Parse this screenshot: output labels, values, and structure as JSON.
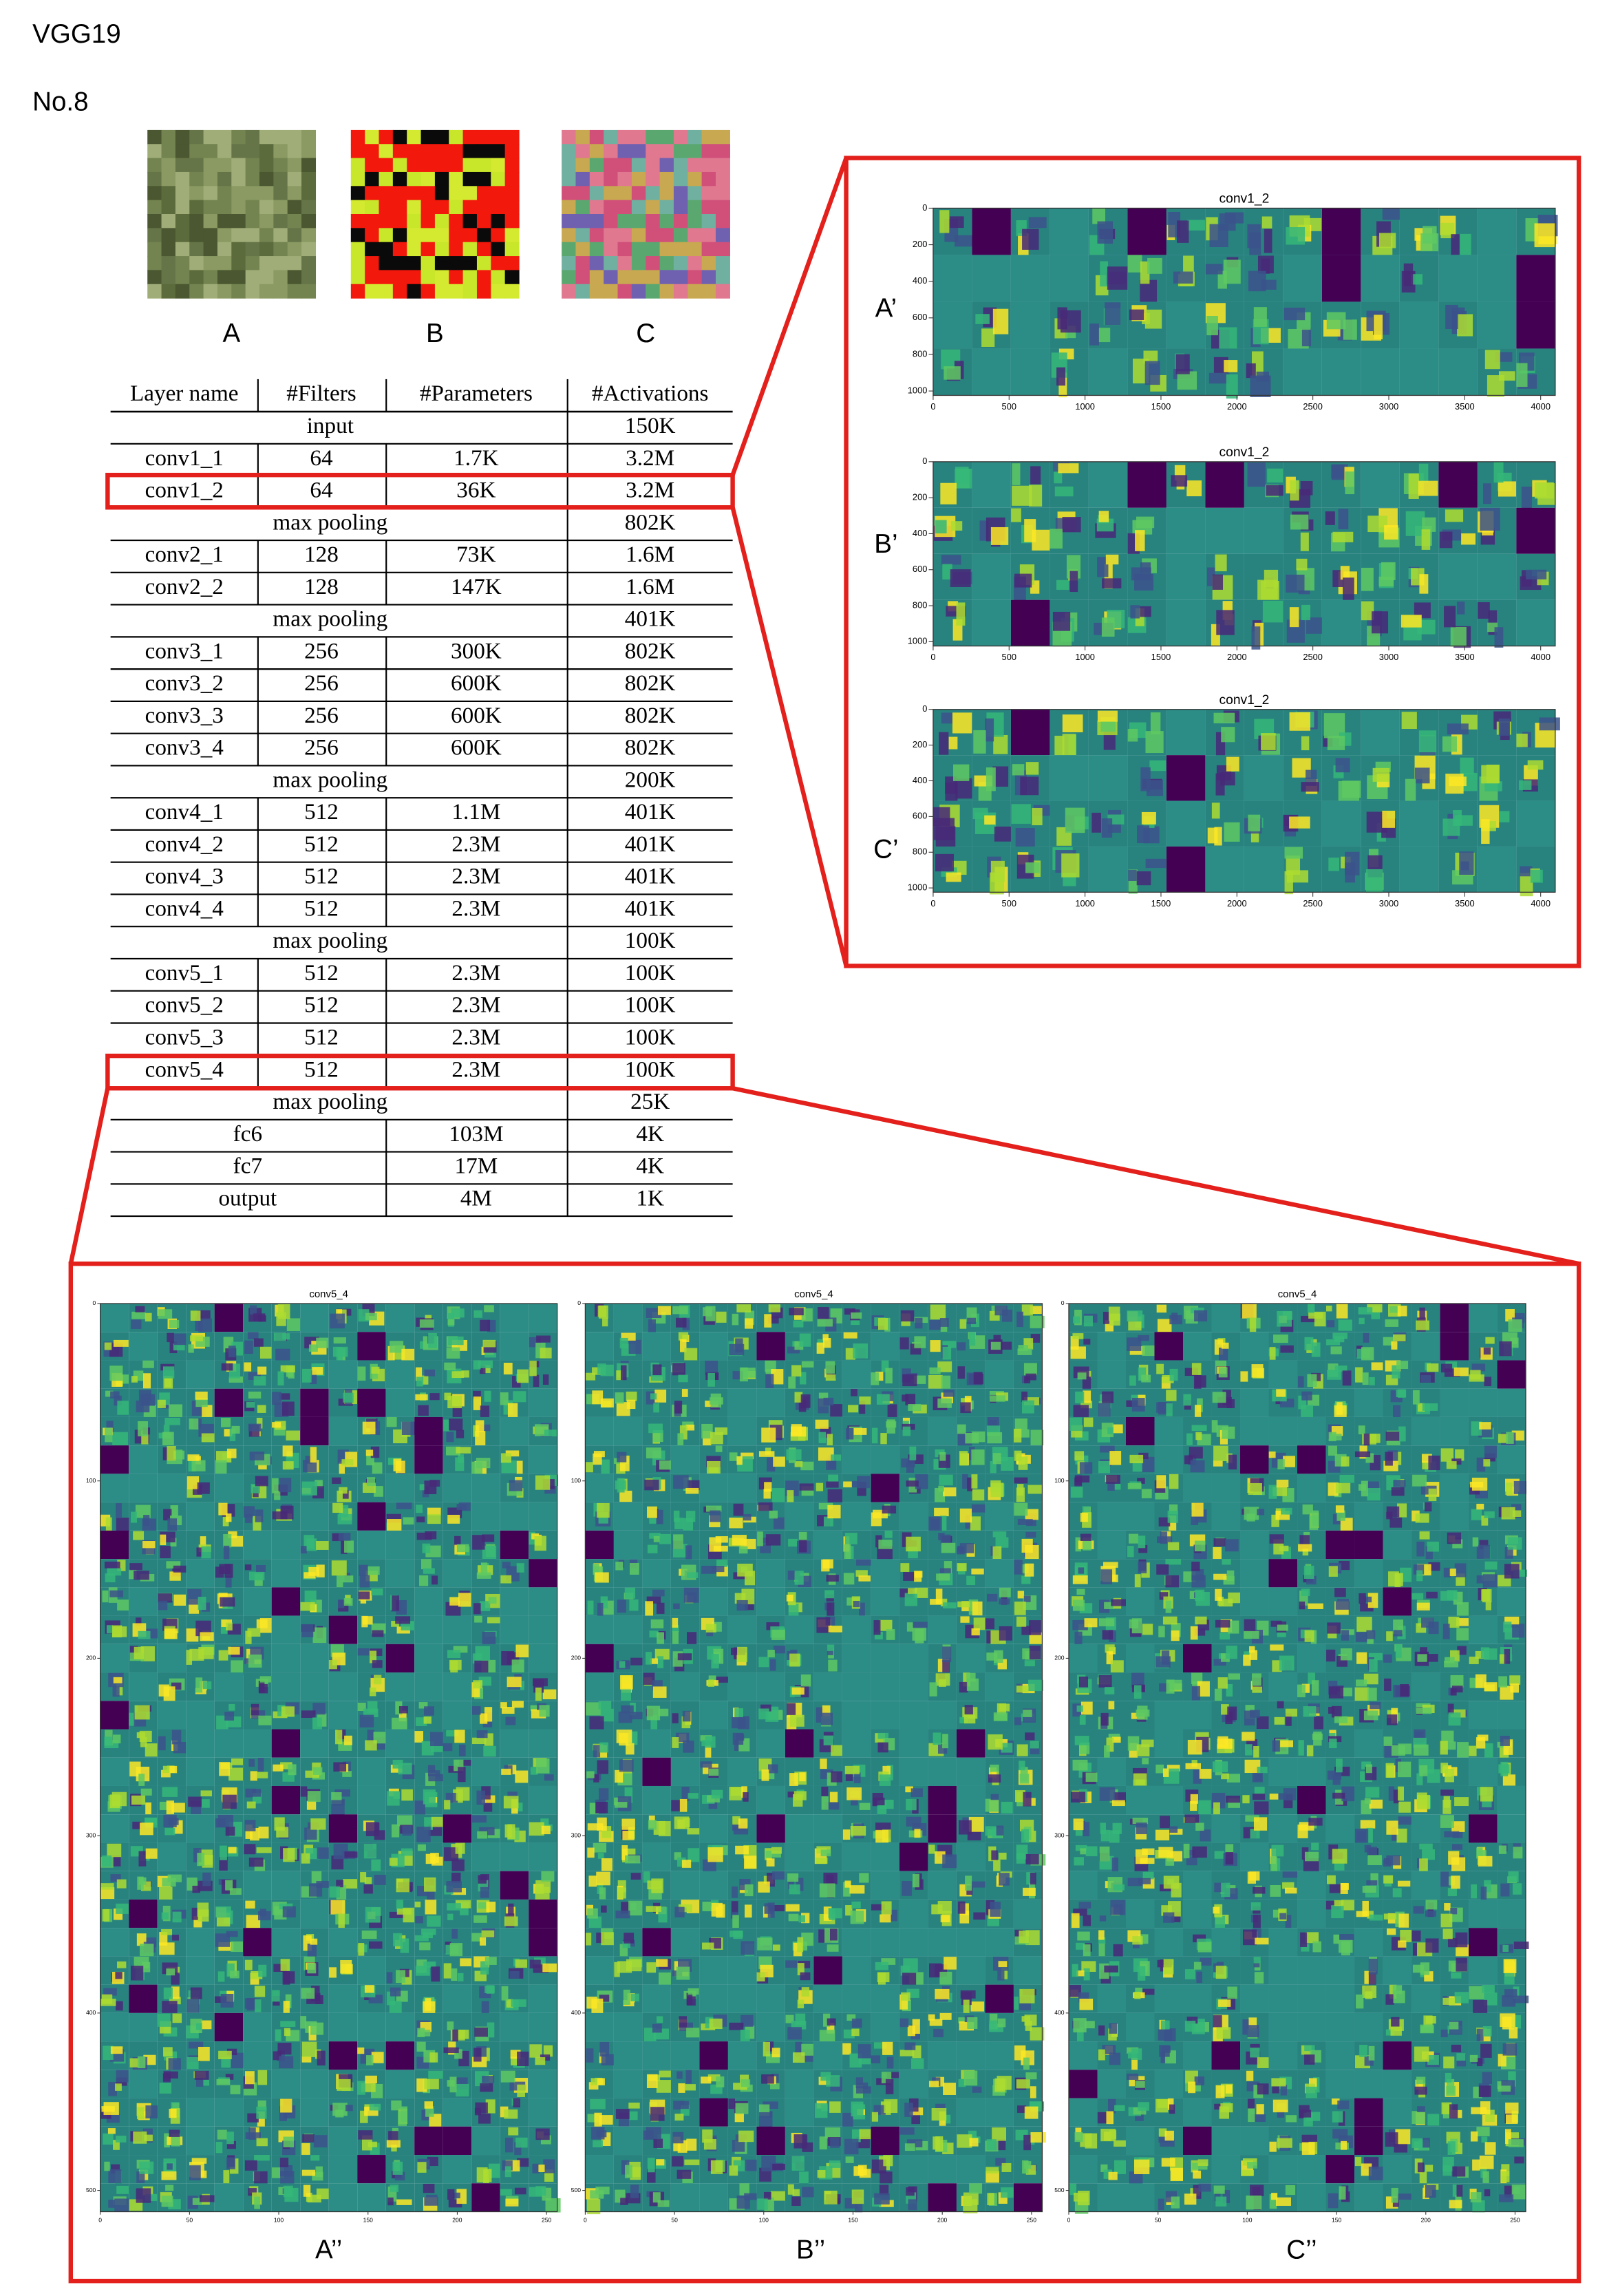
{
  "header": {
    "title": "VGG19",
    "subtitle": "No.8"
  },
  "images": [
    "A",
    "B",
    "C"
  ],
  "table": {
    "columns": [
      "Layer name",
      "#Filters",
      "#Parameters",
      "#Activations"
    ],
    "rows": [
      [
        "input",
        "150K"
      ],
      [
        "conv1_1",
        "64",
        "1.7K",
        "3.2M"
      ],
      [
        "conv1_2",
        "64",
        "36K",
        "3.2M"
      ],
      [
        "max pooling",
        "802K"
      ],
      [
        "conv2_1",
        "128",
        "73K",
        "1.6M"
      ],
      [
        "conv2_2",
        "128",
        "147K",
        "1.6M"
      ],
      [
        "max pooling",
        "401K"
      ],
      [
        "conv3_1",
        "256",
        "300K",
        "802K"
      ],
      [
        "conv3_2",
        "256",
        "600K",
        "802K"
      ],
      [
        "conv3_3",
        "256",
        "600K",
        "802K"
      ],
      [
        "conv3_4",
        "256",
        "600K",
        "802K"
      ],
      [
        "max pooling",
        "200K"
      ],
      [
        "conv4_1",
        "512",
        "1.1M",
        "401K"
      ],
      [
        "conv4_2",
        "512",
        "2.3M",
        "401K"
      ],
      [
        "conv4_3",
        "512",
        "2.3M",
        "401K"
      ],
      [
        "conv4_4",
        "512",
        "2.3M",
        "401K"
      ],
      [
        "max pooling",
        "100K"
      ],
      [
        "conv5_1",
        "512",
        "2.3M",
        "100K"
      ],
      [
        "conv5_2",
        "512",
        "2.3M",
        "100K"
      ],
      [
        "conv5_3",
        "512",
        "2.3M",
        "100K"
      ],
      [
        "conv5_4",
        "512",
        "2.3M",
        "100K"
      ],
      [
        "max pooling",
        "25K"
      ],
      [
        "fc6",
        "103M",
        "4K"
      ],
      [
        "fc7",
        "17M",
        "4K"
      ],
      [
        "output",
        "4M",
        "1K"
      ]
    ]
  },
  "top_panels": {
    "labels": [
      "A’",
      "B’",
      "C’"
    ],
    "titles": [
      "conv1_2",
      "conv1_2",
      "conv1_2"
    ],
    "xticks": [
      0,
      500,
      1000,
      1500,
      2000,
      2500,
      3000,
      3500,
      4000
    ],
    "yticks": [
      0,
      200,
      400,
      600,
      800,
      1000
    ]
  },
  "bottom_panels": {
    "labels": [
      "A’’",
      "B’’",
      "C’’"
    ],
    "titles": [
      "conv5_4",
      "conv5_4",
      "conv5_4"
    ],
    "xticks": [
      0,
      50,
      100,
      150,
      200,
      250
    ],
    "yticks": [
      0,
      100,
      200,
      300,
      400,
      500
    ]
  }
}
